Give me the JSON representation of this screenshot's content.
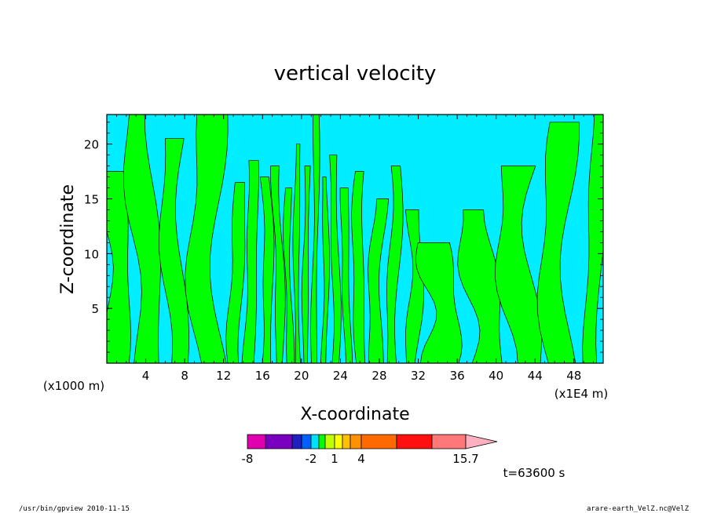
{
  "chart_data": {
    "type": "heatmap",
    "title": "vertical velocity",
    "xlabel": "X-coordinate",
    "ylabel": "Z-coordinate",
    "x_unit_label": "(x1E4 m)",
    "y_unit_label": "(x1000 m)",
    "x_ticks": [
      "4",
      "8",
      "12",
      "16",
      "20",
      "24",
      "28",
      "32",
      "36",
      "40",
      "44",
      "48"
    ],
    "y_ticks": [
      "5",
      "10",
      "15",
      "20"
    ],
    "xlim": [
      0,
      51
    ],
    "ylim": [
      0,
      22.7
    ],
    "colorbar": {
      "labels": [
        "-8",
        "-2",
        "1",
        "4",
        "15.7"
      ],
      "levels": [
        -8,
        -6,
        -4,
        -3,
        -2,
        -1,
        0,
        1,
        2,
        3,
        4,
        8,
        12,
        15.7
      ],
      "colors": [
        "#e000b0",
        "#7a00c0",
        "#2020c0",
        "#0060ff",
        "#00e0ff",
        "#00ff00",
        "#c0ff00",
        "#ffff00",
        "#ffc000",
        "#ff9000",
        "#ff6a00",
        "#ff1010",
        "#ff7878",
        "#ffb0c0"
      ]
    },
    "fill_colors": {
      "positive": "#00ff00",
      "negative": "#00eeff"
    },
    "upward_bands": [
      {
        "x_center": 0.8,
        "width": 2.2,
        "z_top": 17.5
      },
      {
        "x_center": 3.8,
        "width": 2.4,
        "z_top": 22.7
      },
      {
        "x_center": 7.0,
        "width": 1.8,
        "z_top": 20.5
      },
      {
        "x_center": 10.5,
        "width": 2.6,
        "z_top": 22.7
      },
      {
        "x_center": 13.4,
        "width": 1.2,
        "z_top": 16.5
      },
      {
        "x_center": 14.8,
        "width": 1.0,
        "z_top": 18.5
      },
      {
        "x_center": 16.4,
        "width": 0.9,
        "z_top": 17.0
      },
      {
        "x_center": 17.6,
        "width": 0.8,
        "z_top": 18.0
      },
      {
        "x_center": 18.7,
        "width": 0.6,
        "z_top": 16.0
      },
      {
        "x_center": 19.6,
        "width": 0.5,
        "z_top": 20.0
      },
      {
        "x_center": 20.5,
        "width": 0.5,
        "z_top": 18.0
      },
      {
        "x_center": 21.4,
        "width": 0.5,
        "z_top": 22.7
      },
      {
        "x_center": 22.4,
        "width": 0.5,
        "z_top": 17.0
      },
      {
        "x_center": 23.4,
        "width": 0.7,
        "z_top": 19.0
      },
      {
        "x_center": 24.6,
        "width": 0.7,
        "z_top": 16.0
      },
      {
        "x_center": 26.0,
        "width": 1.0,
        "z_top": 17.5
      },
      {
        "x_center": 27.8,
        "width": 1.2,
        "z_top": 15.0
      },
      {
        "x_center": 29.5,
        "width": 1.0,
        "z_top": 18.0
      },
      {
        "x_center": 31.5,
        "width": 1.2,
        "z_top": 14.0
      },
      {
        "x_center": 34.0,
        "width": 3.0,
        "z_top": 11.0
      },
      {
        "x_center": 38.5,
        "width": 3.0,
        "z_top": 14.0
      },
      {
        "x_center": 42.5,
        "width": 3.0,
        "z_top": 18.0
      },
      {
        "x_center": 46.5,
        "width": 2.5,
        "z_top": 22.0
      },
      {
        "x_center": 50.2,
        "width": 1.4,
        "z_top": 22.7
      }
    ],
    "grid": false,
    "legend": "bottom-center"
  },
  "time_label": "t=63600 s",
  "footer": {
    "left": "/usr/bin/gpview  2010-11-15",
    "right": "arare-earth_VelZ.nc@VelZ"
  }
}
